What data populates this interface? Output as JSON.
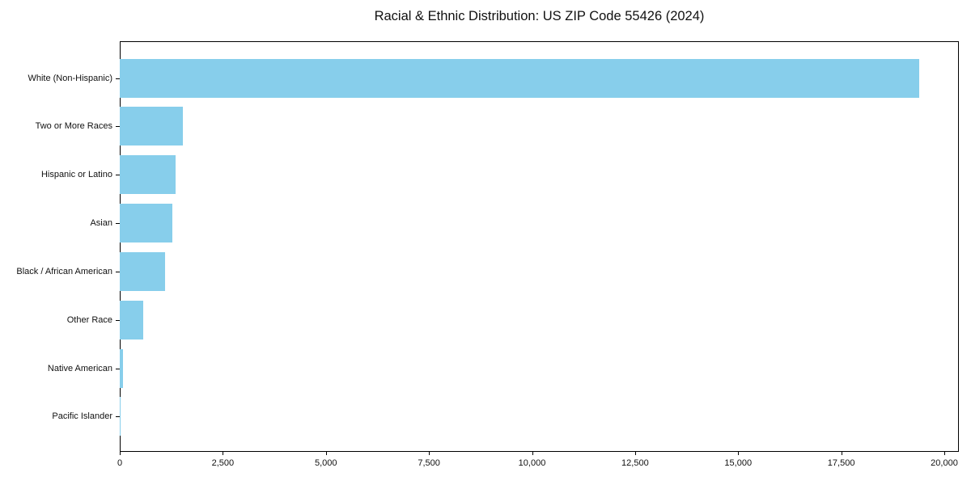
{
  "title": "Racial & Ethnic Distribution: US ZIP Code 55426 (2024)",
  "chart_data": {
    "type": "bar",
    "orientation": "horizontal",
    "title": "Racial & Ethnic Distribution: US ZIP Code 55426 (2024)",
    "xlabel": "",
    "ylabel": "",
    "categories": [
      "White (Non-Hispanic)",
      "Two or More Races",
      "Hispanic or Latino",
      "Asian",
      "Black / African American",
      "Other Race",
      "Native American",
      "Pacific Islander"
    ],
    "values": [
      19400,
      1530,
      1350,
      1275,
      1100,
      570,
      85,
      10
    ],
    "x_ticks": [
      0,
      2500,
      5000,
      7500,
      10000,
      12500,
      15000,
      17500,
      20000
    ],
    "x_tick_labels": [
      "0",
      "2,500",
      "5,000",
      "7,500",
      "10,000",
      "12,500",
      "15,000",
      "17,500",
      "20,000"
    ],
    "xlim": [
      0,
      20350
    ],
    "grid": false,
    "legend": null,
    "bar_color": "#87CEEB"
  },
  "colors": {
    "bar": "#87CEEB",
    "axis": "#000000",
    "text": "#111111",
    "background": "#FFFFFF"
  }
}
